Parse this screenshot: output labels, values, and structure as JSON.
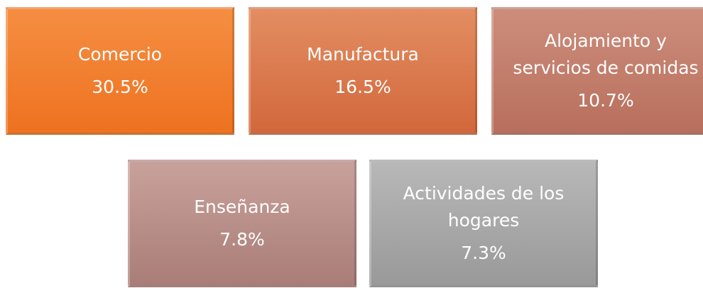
{
  "boxes": [
    {
      "label": [
        "Comercio"
      ],
      "value": "30.5%"
    },
    {
      "label": [
        "Manufactura"
      ],
      "value": "16.5%"
    },
    {
      "label": [
        "Alojamiento y",
        "servicios de comidas"
      ],
      "value": "10.7%"
    },
    {
      "label": [
        "Enseñanza"
      ],
      "value": "7.8%"
    },
    {
      "label": [
        "Actividades de los",
        "hogares"
      ],
      "value": "7.3%"
    }
  ]
}
